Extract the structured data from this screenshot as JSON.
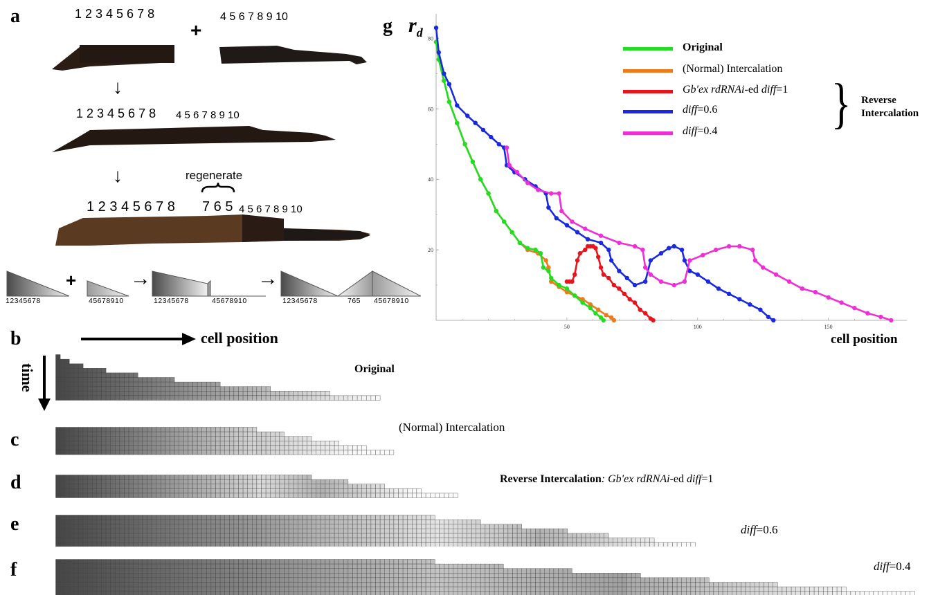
{
  "panel_a": {
    "label": "a",
    "top_left_numbers": "1 2 3 4 5 6 7 8",
    "plus": "+",
    "top_right_numbers": "4 5 6 7 8 9 10",
    "arrow1": "↓",
    "mid_numbers_a": "1 2 3 4 5 6 7 8",
    "mid_numbers_b": "4 5 6 7 8 9 10",
    "arrow2": "↓",
    "regenerate": "regenerate",
    "bottom_numbers_a": "1 2 3 4 5 6 7 8",
    "bottom_numbers_regen": "7 6 5",
    "bottom_numbers_b": "4 5 6 7 8 9 10",
    "schematic": {
      "t1": "12345678",
      "plus": "+",
      "t2": "45678910",
      "arrow": "→",
      "t3a": "12345678",
      "t3b": "45678910",
      "arrow2": "→",
      "t4a": "12345678",
      "t4b": "765",
      "t4c": "45678910"
    }
  },
  "panel_b": {
    "label": "b",
    "x_arrow_label": "cell position",
    "y_arrow_label": "time",
    "title": "Original"
  },
  "panel_c": {
    "label": "c",
    "title": "(Normal) Intercalation"
  },
  "panel_d": {
    "label": "d",
    "title_bold": "Reverse Intercalation",
    "title_rest_a": ": ",
    "title_it1": "Gb'ex rdRNAi",
    "title_rest_b": "-ed ",
    "title_it2": "diff",
    "title_rest_c": "=1"
  },
  "panel_e": {
    "label": "e",
    "title_it": "diff",
    "title_rest": "=0.6"
  },
  "panel_f": {
    "label": "f",
    "title_it": "diff",
    "title_rest": "=0.4"
  },
  "panel_g": {
    "label": "g",
    "y_label": "r",
    "y_label_sub": "d",
    "x_label": "cell position",
    "legend": {
      "original": "Original",
      "normal": "(Normal) Intercalation",
      "red_it1": "Gb'ex rdRNAi",
      "red_mid": "-ed ",
      "red_it2": "diff",
      "red_end": "=1",
      "blue_it": "diff",
      "blue_end": "=0.6",
      "magenta_it": "diff",
      "magenta_end": "=0.4",
      "brace_label_1": "Reverse",
      "brace_label_2": "Intercalation"
    }
  },
  "colors": {
    "original": "#22dd22",
    "normal": "#ee7a1a",
    "red": "#e8141c",
    "blue": "#1a28e0",
    "magenta": "#ee2fd6"
  },
  "chart_data": {
    "type": "line",
    "xlabel": "cell position",
    "ylabel": "r_d",
    "xlim": [
      0,
      180
    ],
    "ylim": [
      0,
      85
    ],
    "x_ticks": [
      50,
      100,
      150
    ],
    "y_ticks": [
      20,
      40,
      60,
      80
    ],
    "grid": false,
    "legend_position": "top-right",
    "series": [
      {
        "name": "Original",
        "color": "#22dd22",
        "points": [
          [
            0,
            79
          ],
          [
            1,
            74
          ],
          [
            3,
            68
          ],
          [
            5,
            62
          ],
          [
            8,
            56
          ],
          [
            11,
            50
          ],
          [
            14,
            45
          ],
          [
            17,
            40
          ],
          [
            20,
            36
          ],
          [
            23,
            31
          ],
          [
            26,
            28
          ],
          [
            29,
            25
          ],
          [
            32,
            22
          ],
          [
            35,
            20.5
          ],
          [
            38,
            20
          ],
          [
            40,
            19
          ],
          [
            41,
            15
          ],
          [
            43,
            14
          ],
          [
            44,
            12
          ],
          [
            47,
            10
          ],
          [
            50,
            9
          ],
          [
            53,
            7
          ],
          [
            56,
            5
          ],
          [
            59,
            3.5
          ],
          [
            61,
            2
          ],
          [
            63,
            0.8
          ],
          [
            64,
            0
          ]
        ]
      },
      {
        "name": "(Normal) Intercalation",
        "color": "#ee7a1a",
        "points": [
          [
            0,
            79
          ],
          [
            1,
            74
          ],
          [
            3,
            68
          ],
          [
            5,
            62
          ],
          [
            8,
            56
          ],
          [
            11,
            50
          ],
          [
            14,
            45
          ],
          [
            17,
            40
          ],
          [
            20,
            36
          ],
          [
            23,
            31
          ],
          [
            26,
            28
          ],
          [
            29,
            25
          ],
          [
            32,
            22
          ],
          [
            35,
            20
          ],
          [
            39,
            19
          ],
          [
            42,
            17
          ],
          [
            43,
            15
          ],
          [
            44,
            11
          ],
          [
            47,
            9.5
          ],
          [
            50,
            8
          ],
          [
            53,
            7
          ],
          [
            56,
            6
          ],
          [
            59,
            4.5
          ],
          [
            62,
            3
          ],
          [
            65,
            1.5
          ],
          [
            67,
            0.8
          ],
          [
            68,
            0
          ]
        ]
      },
      {
        "name": "Gb'ex rdRNAi-ed diff=1",
        "color": "#e8141c",
        "points": [
          [
            50,
            11
          ],
          [
            51,
            11
          ],
          [
            52,
            11
          ],
          [
            53,
            13
          ],
          [
            54,
            17
          ],
          [
            55,
            19
          ],
          [
            57,
            20
          ],
          [
            58,
            21
          ],
          [
            59,
            21
          ],
          [
            60,
            21
          ],
          [
            61,
            20.5
          ],
          [
            62,
            18
          ],
          [
            63,
            15
          ],
          [
            64,
            13
          ],
          [
            66,
            12
          ],
          [
            68,
            10
          ],
          [
            70,
            9
          ],
          [
            72,
            7.5
          ],
          [
            74,
            6
          ],
          [
            76,
            5
          ],
          [
            78,
            3
          ],
          [
            80,
            2
          ],
          [
            82,
            0.5
          ],
          [
            83,
            0
          ]
        ]
      },
      {
        "name": "diff=0.6",
        "color": "#1a28e0",
        "points": [
          [
            0,
            83
          ],
          [
            1,
            76
          ],
          [
            3,
            70
          ],
          [
            5,
            67
          ],
          [
            8,
            61
          ],
          [
            12,
            58
          ],
          [
            15,
            56
          ],
          [
            18,
            54
          ],
          [
            21,
            52
          ],
          [
            24,
            50
          ],
          [
            26,
            49
          ],
          [
            27,
            44
          ],
          [
            30,
            42
          ],
          [
            34,
            40
          ],
          [
            38,
            38
          ],
          [
            42,
            36
          ],
          [
            43,
            32
          ],
          [
            46,
            29
          ],
          [
            50,
            27
          ],
          [
            54,
            25
          ],
          [
            58,
            23
          ],
          [
            63,
            22
          ],
          [
            66,
            20
          ],
          [
            67,
            17
          ],
          [
            70,
            14
          ],
          [
            73,
            12
          ],
          [
            76,
            10
          ],
          [
            80,
            11
          ],
          [
            82,
            17
          ],
          [
            86,
            19
          ],
          [
            89,
            20.5
          ],
          [
            91,
            21
          ],
          [
            94,
            20
          ],
          [
            95,
            17
          ],
          [
            97,
            14
          ],
          [
            100,
            13
          ],
          [
            104,
            11
          ],
          [
            108,
            9
          ],
          [
            112,
            7.5
          ],
          [
            116,
            6
          ],
          [
            120,
            4.5
          ],
          [
            124,
            3
          ],
          [
            127,
            1
          ],
          [
            129,
            0
          ]
        ]
      },
      {
        "name": "diff=0.4",
        "color": "#ee2fd6",
        "points": [
          [
            27,
            49
          ],
          [
            28,
            44
          ],
          [
            31,
            42
          ],
          [
            35,
            39
          ],
          [
            39,
            37
          ],
          [
            44,
            36
          ],
          [
            47,
            36
          ],
          [
            48,
            31
          ],
          [
            52,
            28
          ],
          [
            57,
            26
          ],
          [
            63,
            24
          ],
          [
            70,
            22
          ],
          [
            76,
            21
          ],
          [
            79,
            20
          ],
          [
            80,
            15
          ],
          [
            82,
            13
          ],
          [
            86,
            11
          ],
          [
            91,
            10
          ],
          [
            95,
            11
          ],
          [
            97,
            17
          ],
          [
            102,
            18.5
          ],
          [
            107,
            20
          ],
          [
            112,
            21
          ],
          [
            116,
            21
          ],
          [
            121,
            20
          ],
          [
            122,
            17
          ],
          [
            125,
            15
          ],
          [
            130,
            13
          ],
          [
            135,
            11
          ],
          [
            140,
            9
          ],
          [
            145,
            8
          ],
          [
            150,
            6.5
          ],
          [
            155,
            5
          ],
          [
            160,
            3.5
          ],
          [
            165,
            2
          ],
          [
            170,
            1
          ],
          [
            174,
            0
          ]
        ]
      }
    ]
  }
}
